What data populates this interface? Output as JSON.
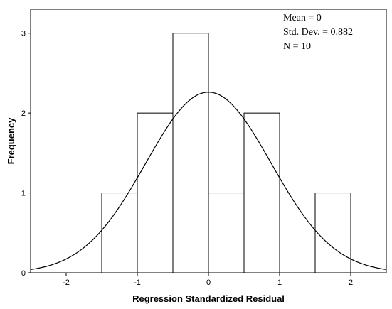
{
  "chart_data": {
    "type": "bar",
    "subtype": "histogram",
    "xlabel": "Regression Standardized Residual",
    "ylabel": "Frequency",
    "xlim": [
      -2.5,
      2.5
    ],
    "ylim": [
      0,
      3.3
    ],
    "x_ticks": [
      -2,
      -1,
      0,
      1,
      2
    ],
    "y_ticks": [
      0,
      1,
      2,
      3
    ],
    "bins": [
      {
        "x0": -1.5,
        "x1": -1.0,
        "count": 1
      },
      {
        "x0": -1.0,
        "x1": -0.5,
        "count": 2
      },
      {
        "x0": -0.5,
        "x1": 0.0,
        "count": 3
      },
      {
        "x0": 0.0,
        "x1": 0.5,
        "count": 1
      },
      {
        "x0": 0.5,
        "x1": 1.0,
        "count": 2
      },
      {
        "x0": 1.5,
        "x1": 2.0,
        "count": 1
      }
    ],
    "stats": {
      "mean_text": "Mean = 0",
      "std_text": "Std. Dev. = 0.882",
      "n_text": "N = 10"
    },
    "normal_curve": {
      "mean": 0,
      "std": 0.882,
      "n": 10,
      "bin_width": 0.5
    },
    "grid": false
  }
}
